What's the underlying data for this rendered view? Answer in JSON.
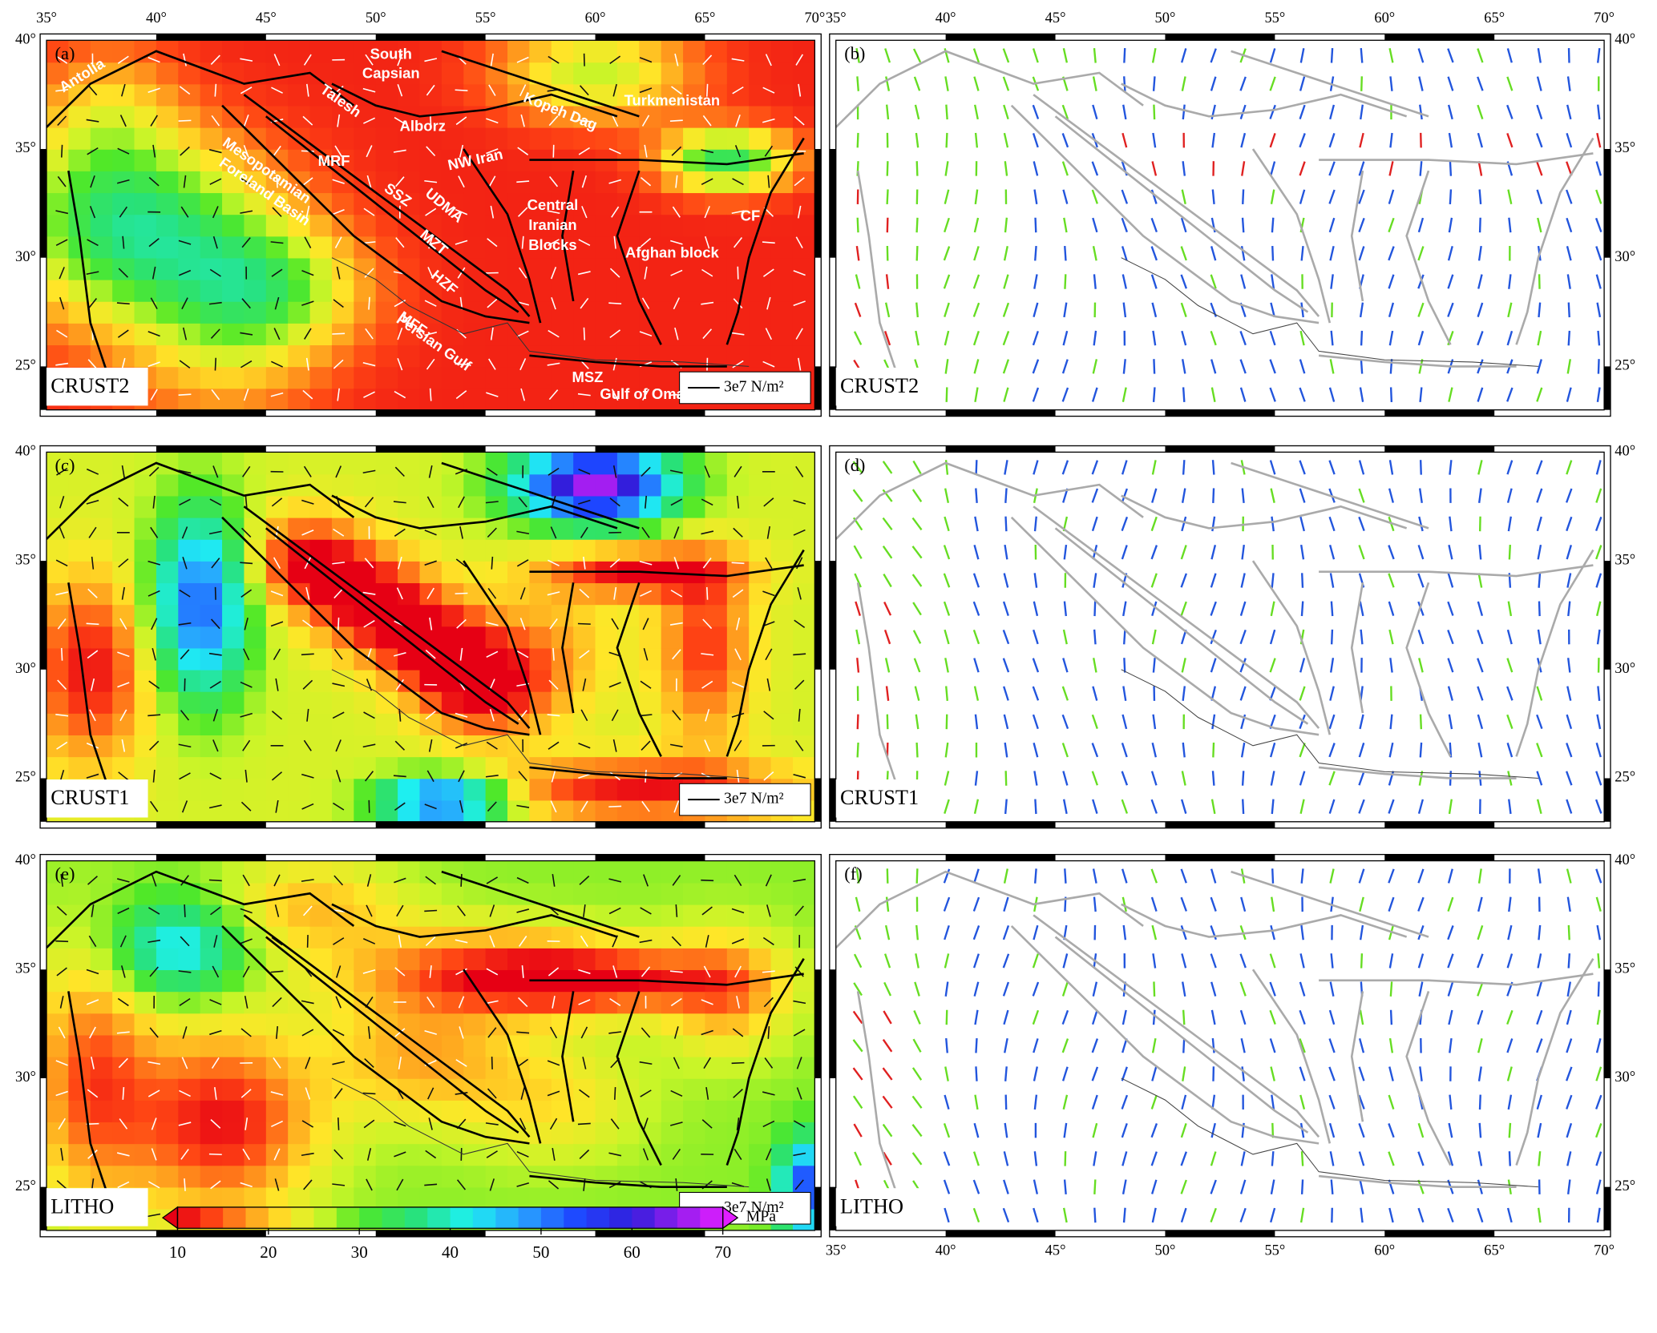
{
  "axes": {
    "lon_labels": [
      "35°",
      "40°",
      "45°",
      "50°",
      "55°",
      "60°",
      "65°",
      "70°"
    ],
    "lat_labels": [
      "25°",
      "30°",
      "35°",
      "40°"
    ]
  },
  "panels": [
    {
      "label": "(a)",
      "model": "CRUST2",
      "scale_bar": "3e7 N/m²"
    },
    {
      "label": "(b)",
      "model": "CRUST2"
    },
    {
      "label": "(c)",
      "model": "CRUST1",
      "scale_bar": "3e7 N/m²"
    },
    {
      "label": "(d)",
      "model": "CRUST1"
    },
    {
      "label": "(e)",
      "model": "LITHO",
      "scale_bar": "3e7 N/m²"
    },
    {
      "label": "(f)",
      "model": "LITHO"
    }
  ],
  "region_labels": [
    [
      "Antolia"
    ],
    [
      "South",
      "Capsian"
    ],
    [
      "Talesh"
    ],
    [
      "Alborz"
    ],
    [
      "Kopeh Dag"
    ],
    [
      "Turkmenistan"
    ],
    [
      "MRF"
    ],
    [
      "NW Iran"
    ],
    [
      "Mesopotamian",
      "Foreland Basin"
    ],
    [
      "SSZ"
    ],
    [
      "UDMA"
    ],
    [
      "Central",
      "Iranian",
      "Blocks"
    ],
    [
      "CF"
    ],
    [
      "MZT"
    ],
    [
      "Afghan block"
    ],
    [
      "HZF"
    ],
    [
      "MFF"
    ],
    [
      "Persian Gulf"
    ],
    [
      "MSZ"
    ],
    [
      "Gulf of Oman"
    ]
  ],
  "colorbar": {
    "ticks": [
      10,
      20,
      30,
      40,
      50,
      60,
      70
    ],
    "unit": "MPa"
  }
}
